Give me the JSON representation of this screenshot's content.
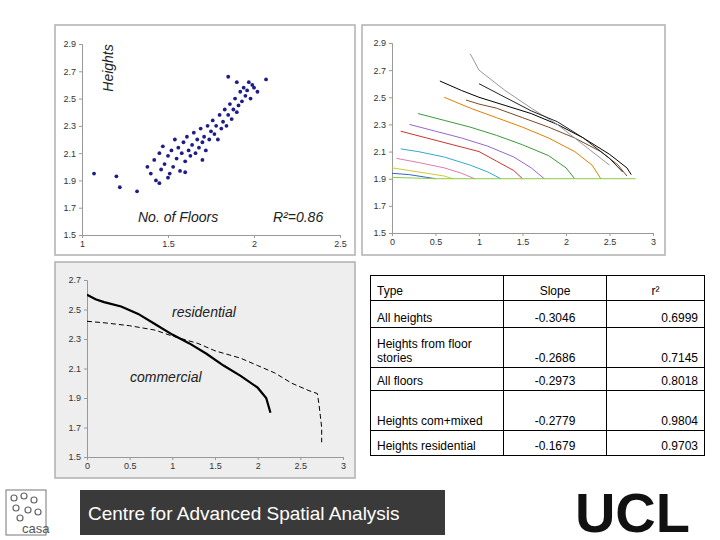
{
  "chart_data": [
    {
      "type": "scatter",
      "x_label": "No. of Floors",
      "y_label": "Heights",
      "annotations": [
        {
          "text": "R²=0.86"
        }
      ],
      "x": [
        1.07,
        1.2,
        1.22,
        1.32,
        1.5,
        1.38,
        1.4,
        1.42,
        1.43,
        1.45,
        1.46,
        1.47,
        1.48,
        1.5,
        1.51,
        1.52,
        1.53,
        1.54,
        1.55,
        1.56,
        1.57,
        1.58,
        1.59,
        1.6,
        1.61,
        1.62,
        1.63,
        1.64,
        1.65,
        1.66,
        1.67,
        1.68,
        1.69,
        1.7,
        1.71,
        1.72,
        1.73,
        1.74,
        1.75,
        1.76,
        1.77,
        1.78,
        1.79,
        1.8,
        1.81,
        1.82,
        1.83,
        1.84,
        1.85,
        1.86,
        1.87,
        1.88,
        1.89,
        1.9,
        1.91,
        1.92,
        1.93,
        1.94,
        1.95,
        1.96,
        1.97,
        1.98,
        1.99,
        2.0,
        2.02,
        1.9,
        1.85,
        2.07,
        1.45,
        1.6,
        1.7
      ],
      "values": [
        1.95,
        1.93,
        1.85,
        1.82,
        1.92,
        2.0,
        1.95,
        2.05,
        1.9,
        2.1,
        1.98,
        2.15,
        2.02,
        2.08,
        1.95,
        2.12,
        2.0,
        2.2,
        2.06,
        2.14,
        1.97,
        2.1,
        2.18,
        2.04,
        2.22,
        2.12,
        2.08,
        2.16,
        2.25,
        2.1,
        2.2,
        2.14,
        2.28,
        2.18,
        2.22,
        2.12,
        2.3,
        2.2,
        2.26,
        2.34,
        2.24,
        2.3,
        2.2,
        2.38,
        2.28,
        2.33,
        2.42,
        2.3,
        2.38,
        2.46,
        2.35,
        2.42,
        2.5,
        2.4,
        2.45,
        2.55,
        2.48,
        2.58,
        2.52,
        2.56,
        2.62,
        2.5,
        2.6,
        2.58,
        2.55,
        2.62,
        2.66,
        2.64,
        1.88,
        1.96,
        2.05
      ],
      "color": "#1c1c8a",
      "marker": "circle",
      "xlim": [
        1,
        2.5
      ],
      "xticks": [
        1,
        1.5,
        2,
        2.5
      ],
      "ylim": [
        1.5,
        2.9
      ],
      "yticks": [
        1.5,
        1.7,
        1.9,
        2.1,
        2.3,
        2.5,
        2.7,
        2.9
      ],
      "grid": false
    },
    {
      "type": "line",
      "series": [
        {
          "color": "#000000",
          "x": [
            0.55,
            0.8,
            1.0,
            1.3,
            1.6,
            1.9,
            2.2,
            2.5,
            2.7,
            2.75
          ],
          "values": [
            2.62,
            2.55,
            2.5,
            2.44,
            2.38,
            2.3,
            2.2,
            2.08,
            1.98,
            1.93
          ]
        },
        {
          "color": "#7a4a2a",
          "x": [
            0.85,
            1.0,
            1.2,
            1.5,
            1.8,
            2.1,
            2.4,
            2.6,
            2.7
          ],
          "values": [
            2.48,
            2.45,
            2.42,
            2.35,
            2.28,
            2.2,
            2.1,
            2.0,
            1.92
          ]
        },
        {
          "color": "#e08000",
          "x": [
            0.6,
            0.9,
            1.2,
            1.5,
            1.8,
            2.1,
            2.3,
            2.4
          ],
          "values": [
            2.5,
            2.42,
            2.35,
            2.28,
            2.2,
            2.1,
            2.0,
            1.9
          ]
        },
        {
          "color": "#3a9a3a",
          "x": [
            0.3,
            0.6,
            0.9,
            1.2,
            1.5,
            1.8,
            2.0,
            2.1
          ],
          "values": [
            2.38,
            2.33,
            2.28,
            2.22,
            2.15,
            2.07,
            1.98,
            1.9
          ]
        },
        {
          "color": "#9966cc",
          "x": [
            0.2,
            0.5,
            0.8,
            1.1,
            1.4,
            1.6,
            1.75
          ],
          "values": [
            2.3,
            2.25,
            2.2,
            2.14,
            2.06,
            1.98,
            1.9
          ]
        },
        {
          "color": "#cc3333",
          "x": [
            0.1,
            0.4,
            0.7,
            1.0,
            1.2,
            1.4,
            1.5
          ],
          "values": [
            2.25,
            2.2,
            2.15,
            2.1,
            2.03,
            1.96,
            1.9
          ]
        },
        {
          "color": "#33aacc",
          "x": [
            0.1,
            0.3,
            0.6,
            0.9,
            1.1,
            1.25
          ],
          "values": [
            2.12,
            2.1,
            2.06,
            2.0,
            1.95,
            1.9
          ]
        },
        {
          "color": "#e27ab0",
          "x": [
            0.05,
            0.3,
            0.6,
            0.8,
            0.95
          ],
          "values": [
            2.05,
            2.02,
            1.98,
            1.94,
            1.9
          ]
        },
        {
          "color": "#cccc33",
          "x": [
            0,
            0.2,
            0.4,
            0.6,
            0.7
          ],
          "values": [
            1.98,
            1.96,
            1.94,
            1.92,
            1.9
          ]
        },
        {
          "color": "#3366cc",
          "x": [
            0,
            0.2,
            0.4,
            0.5
          ],
          "values": [
            1.94,
            1.93,
            1.91,
            1.9
          ]
        },
        {
          "color": "#88cc44",
          "x": [
            0,
            0.5,
            1.0,
            1.5,
            2.0,
            2.5,
            2.8
          ],
          "values": [
            1.91,
            1.9,
            1.9,
            1.9,
            1.9,
            1.9,
            1.9
          ]
        },
        {
          "color": "#999999",
          "x": [
            0.9,
            1.0,
            1.3,
            1.6,
            1.9,
            2.2,
            2.5
          ],
          "values": [
            2.82,
            2.7,
            2.55,
            2.42,
            2.3,
            2.15,
            2.0
          ]
        },
        {
          "color": "#222222",
          "x": [
            1.0,
            1.3,
            1.6,
            1.9,
            2.2,
            2.5,
            2.65
          ],
          "values": [
            2.6,
            2.5,
            2.4,
            2.32,
            2.2,
            2.05,
            1.95
          ]
        }
      ],
      "xlim": [
        0,
        3
      ],
      "xticks": [
        0,
        0.5,
        1,
        1.5,
        2,
        2.5,
        3
      ],
      "ylim": [
        1.5,
        2.9
      ],
      "yticks": [
        1.5,
        1.7,
        1.9,
        2.1,
        2.3,
        2.5,
        2.7,
        2.9
      ],
      "grid": false
    },
    {
      "type": "line",
      "series": [
        {
          "name": "residential",
          "color": "#000000",
          "line_style": "dashed",
          "x": [
            0,
            0.2,
            0.5,
            0.8,
            1.0,
            1.3,
            1.5,
            1.8,
            2.0,
            2.2,
            2.4,
            2.6,
            2.7,
            2.72,
            2.75,
            2.75
          ],
          "values": [
            2.42,
            2.41,
            2.39,
            2.36,
            2.32,
            2.27,
            2.22,
            2.17,
            2.12,
            2.07,
            2.0,
            1.95,
            1.93,
            1.85,
            1.7,
            1.6
          ]
        },
        {
          "name": "commercial",
          "color": "#000000",
          "line_style": "solid",
          "x": [
            0,
            0.1,
            0.2,
            0.4,
            0.6,
            0.8,
            1.0,
            1.2,
            1.4,
            1.6,
            1.8,
            2.0,
            2.1,
            2.15
          ],
          "values": [
            2.6,
            2.57,
            2.55,
            2.52,
            2.47,
            2.4,
            2.33,
            2.27,
            2.2,
            2.12,
            2.05,
            1.97,
            1.9,
            1.8
          ]
        }
      ],
      "xlim": [
        0,
        3
      ],
      "xticks": [
        0,
        0.5,
        1,
        1.5,
        2,
        2.5,
        3
      ],
      "ylim": [
        1.5,
        2.7
      ],
      "yticks": [
        1.5,
        1.7,
        1.9,
        2.1,
        2.3,
        2.5,
        2.7
      ],
      "grid": false
    }
  ],
  "table": {
    "headers": [
      "Type",
      "Slope",
      "r²"
    ],
    "rows": [
      [
        "All heights",
        -0.3046,
        0.6999
      ],
      [
        "Heights from floor stories",
        -0.2686,
        0.7145
      ],
      [
        "All floors",
        -0.2973,
        0.8018
      ],
      [
        "Heights com+mixed",
        -0.2779,
        0.9804
      ],
      [
        "Heights residential",
        -0.1679,
        0.9703
      ]
    ]
  },
  "footer": {
    "title": "Centre for Advanced Spatial Analysis",
    "logo_left": "casa",
    "logo_right": "UCL"
  }
}
